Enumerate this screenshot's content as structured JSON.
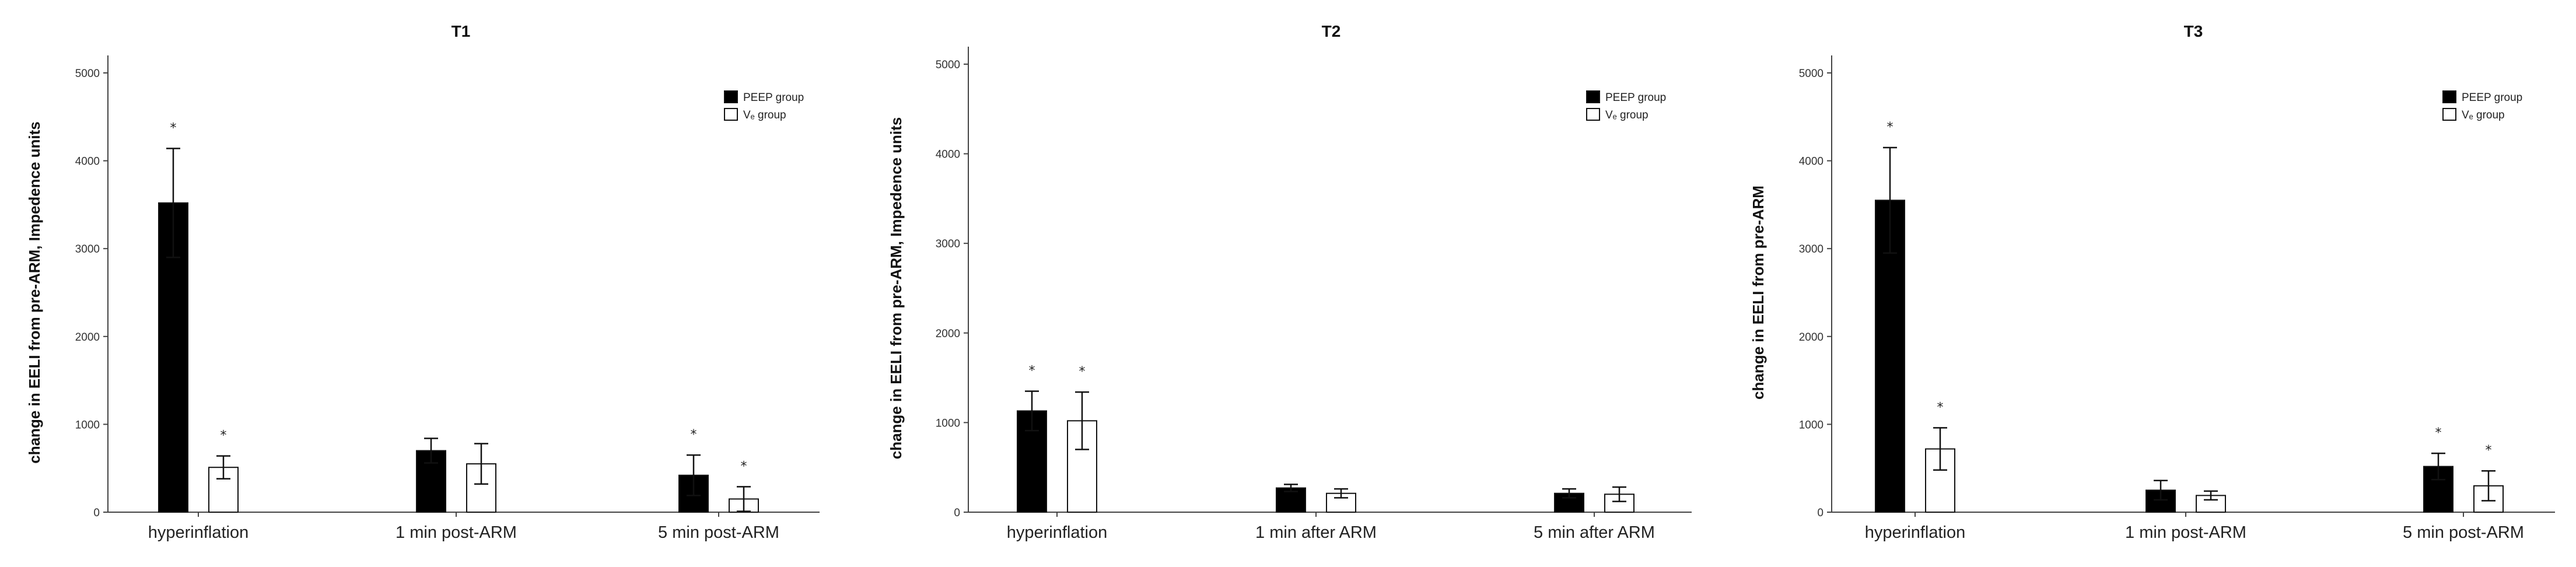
{
  "chart_data": [
    {
      "type": "bar",
      "title": "T1",
      "ylabel": "change in EELI from pre-ARM, Impedence units",
      "xlabel": "",
      "ylim": [
        0,
        5000
      ],
      "yticks": [
        0,
        1000,
        2000,
        3000,
        4000,
        5000
      ],
      "categories": [
        "hyperinflation",
        "1 min post-ARM",
        "5 min post-ARM"
      ],
      "series": [
        {
          "name": "PEEP group",
          "fill": "#000000",
          "values": [
            3520,
            700,
            420
          ],
          "errors": [
            620,
            140,
            230
          ]
        },
        {
          "name": "Vₑ group",
          "fill": "#ffffff",
          "values": [
            510,
            550,
            150
          ],
          "errors": [
            130,
            230,
            140
          ]
        }
      ],
      "annotations": [
        {
          "category": 0,
          "series": 0,
          "text": "*"
        },
        {
          "category": 0,
          "series": 1,
          "text": "*"
        },
        {
          "category": 2,
          "series": 0,
          "text": "*"
        },
        {
          "category": 2,
          "series": 1,
          "text": "*"
        }
      ],
      "grid": false,
      "legend": "top-right"
    },
    {
      "type": "bar",
      "title": "T2",
      "ylabel": "change in EELI from pre-ARM, Impedence units",
      "xlabel": "",
      "ylim": [
        0,
        5000
      ],
      "yticks": [
        0,
        1000,
        2000,
        3000,
        4000,
        5000
      ],
      "categories": [
        "hyperinflation",
        "1 min after ARM",
        "5 min after ARM"
      ],
      "series": [
        {
          "name": "PEEP group",
          "fill": "#000000",
          "values": [
            1130,
            270,
            210
          ],
          "errors": [
            220,
            40,
            50
          ]
        },
        {
          "name": "Vₑ group",
          "fill": "#ffffff",
          "values": [
            1020,
            210,
            200
          ],
          "errors": [
            320,
            50,
            80
          ]
        }
      ],
      "annotations": [
        {
          "category": 0,
          "series": 0,
          "text": "*"
        },
        {
          "category": 0,
          "series": 1,
          "text": "*"
        }
      ],
      "grid": false,
      "legend": "top-right"
    },
    {
      "type": "bar",
      "title": "T3",
      "ylabel": "change in EELI from pre-ARM",
      "xlabel": "",
      "ylim": [
        0,
        5000
      ],
      "yticks": [
        0,
        1000,
        2000,
        3000,
        4000,
        5000
      ],
      "categories": [
        "hyperinflation",
        "1 min post-ARM",
        "5 min post-ARM"
      ],
      "series": [
        {
          "name": "PEEP group",
          "fill": "#000000",
          "values": [
            3550,
            250,
            520
          ],
          "errors": [
            600,
            110,
            150
          ]
        },
        {
          "name": "Vₑ group",
          "fill": "#ffffff",
          "values": [
            720,
            190,
            300
          ],
          "errors": [
            240,
            50,
            170
          ]
        }
      ],
      "annotations": [
        {
          "category": 0,
          "series": 0,
          "text": "*"
        },
        {
          "category": 0,
          "series": 1,
          "text": "*"
        },
        {
          "category": 2,
          "series": 0,
          "text": "*"
        },
        {
          "category": 2,
          "series": 1,
          "text": "*"
        }
      ],
      "grid": false,
      "legend": "top-right"
    }
  ]
}
